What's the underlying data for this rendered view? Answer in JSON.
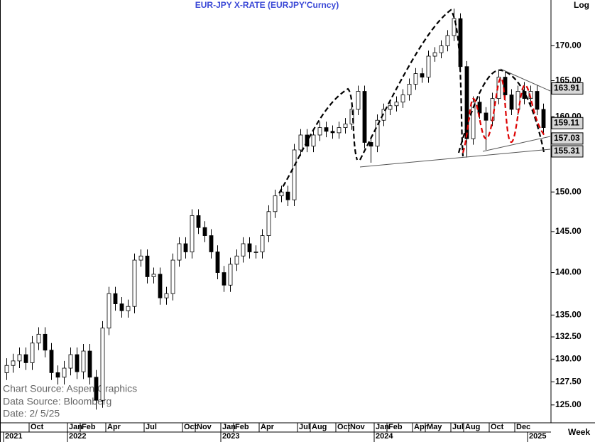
{
  "chart_data": {
    "type": "candlestick",
    "title": "EUR-JPY  X-RATE  (EURJPY'Curncy)",
    "scale_label": "Log",
    "period_label": "Week",
    "log_scale": true,
    "source_lines": [
      "Chart Source: Aspen Graphics",
      "Data Source: Bloomberg",
      "Date:   2/  5/25"
    ],
    "categories": [
      "2021-08",
      "2021-08",
      "2021-09",
      "2021-09",
      "2021-10",
      "2021-10",
      "2021-11",
      "2021-11",
      "2021-12",
      "2021-12",
      "2022-01",
      "2022-01",
      "2022-02",
      "2022-02",
      "2022-03",
      "2022-03",
      "2022-04",
      "2022-04",
      "2022-05",
      "2022-05",
      "2022-06",
      "2022-06",
      "2022-07",
      "2022-07",
      "2022-08",
      "2022-08",
      "2022-09",
      "2022-09",
      "2022-10",
      "2022-10",
      "2022-11",
      "2022-11",
      "2022-12",
      "2022-12",
      "2023-01",
      "2023-01",
      "2023-02",
      "2023-02",
      "2023-03",
      "2023-03",
      "2023-04",
      "2023-04",
      "2023-05",
      "2023-05",
      "2023-06",
      "2023-06",
      "2023-07",
      "2023-07",
      "2023-08",
      "2023-08",
      "2023-09",
      "2023-09",
      "2023-10",
      "2023-10",
      "2023-11",
      "2023-11",
      "2023-12",
      "2023-12",
      "2024-01",
      "2024-01",
      "2024-02",
      "2024-02",
      "2024-03",
      "2024-03",
      "2024-04",
      "2024-04",
      "2024-05",
      "2024-05",
      "2024-06",
      "2024-06",
      "2024-07",
      "2024-07",
      "2024-08",
      "2024-08",
      "2024-09",
      "2024-09",
      "2024-10",
      "2024-10",
      "2024-11",
      "2024-11",
      "2024-12",
      "2024-12",
      "2025-01",
      "2025-01",
      "2025-02"
    ],
    "open": [
      128.5,
      129.3,
      129.8,
      130.5,
      129.6,
      131.8,
      132.8,
      131.0,
      128.5,
      128.0,
      129.0,
      130.5,
      128.6,
      130.9,
      128.0,
      125.5,
      133.5,
      137.5,
      136.3,
      135.5,
      136.0,
      141.5,
      142.0,
      139.5,
      139.8,
      137.0,
      137.5,
      141.5,
      143.5,
      142.5,
      147.0,
      145.5,
      144.5,
      142.5,
      140.0,
      138.5,
      141.0,
      142.0,
      143.5,
      142.5,
      142.5,
      144.5,
      147.5,
      149.5,
      150.0,
      149.0,
      155.5,
      157.5,
      156.0,
      157.5,
      158.5,
      158.0,
      157.8,
      158.5,
      159.0,
      161.0,
      163.5,
      156.5,
      156.0,
      159.5,
      161.0,
      161.5,
      162.0,
      163.0,
      164.5,
      166.0,
      165.5,
      168.5,
      169.0,
      170.0,
      171.5,
      174.0,
      167.0,
      157.0,
      162.0,
      160.5,
      159.5,
      162.5,
      165.5,
      163.0,
      161.0,
      163.5,
      162.5,
      163.5,
      161.0
    ],
    "high": [
      130.1,
      130.6,
      131.3,
      131.3,
      132.6,
      133.6,
      133.6,
      131.8,
      129.3,
      129.8,
      131.3,
      131.3,
      131.7,
      131.7,
      128.8,
      134.3,
      138.3,
      138.3,
      137.1,
      136.8,
      142.3,
      142.8,
      142.8,
      140.6,
      140.6,
      138.3,
      142.3,
      144.3,
      144.3,
      147.8,
      147.8,
      146.3,
      145.3,
      143.3,
      140.8,
      141.8,
      142.8,
      144.3,
      144.3,
      143.3,
      145.3,
      148.3,
      150.3,
      150.8,
      150.8,
      156.3,
      158.3,
      158.3,
      158.3,
      159.3,
      159.3,
      158.8,
      159.3,
      159.8,
      161.8,
      164.3,
      164.3,
      157.3,
      160.3,
      161.8,
      162.3,
      162.8,
      163.8,
      165.3,
      166.8,
      166.8,
      169.3,
      169.8,
      170.8,
      172.3,
      175.5,
      174.8,
      167.8,
      162.8,
      162.8,
      161.3,
      163.3,
      166.5,
      166.3,
      163.8,
      164.3,
      164.8,
      164.3,
      164.3,
      161.8
    ],
    "low": [
      127.7,
      128.5,
      129.0,
      128.8,
      128.8,
      131.0,
      130.2,
      127.7,
      127.2,
      127.2,
      128.2,
      127.8,
      127.8,
      127.2,
      124.5,
      124.7,
      132.7,
      135.5,
      134.7,
      134.7,
      135.2,
      140.7,
      138.7,
      138.7,
      136.2,
      136.2,
      136.7,
      140.7,
      141.7,
      141.7,
      144.7,
      143.7,
      141.7,
      139.2,
      137.7,
      137.7,
      140.2,
      141.2,
      141.7,
      141.7,
      141.7,
      143.7,
      146.7,
      148.7,
      148.2,
      148.2,
      154.7,
      155.2,
      155.2,
      156.7,
      157.2,
      157.0,
      157.0,
      157.7,
      158.2,
      160.2,
      155.7,
      153.8,
      155.2,
      158.7,
      160.2,
      160.7,
      161.2,
      162.2,
      163.7,
      164.7,
      164.7,
      167.7,
      168.2,
      169.2,
      170.7,
      166.2,
      154.5,
      156.2,
      159.7,
      155.5,
      158.7,
      161.7,
      162.2,
      160.2,
      160.2,
      161.7,
      161.7,
      160.2,
      157.8
    ],
    "close": [
      129.3,
      129.8,
      130.5,
      129.6,
      131.8,
      132.8,
      131.0,
      128.5,
      128.0,
      129.0,
      130.5,
      128.6,
      130.9,
      128.0,
      125.5,
      133.5,
      137.5,
      136.3,
      135.5,
      136.0,
      141.5,
      142.0,
      139.5,
      139.8,
      137.0,
      137.5,
      141.5,
      143.5,
      142.5,
      147.0,
      145.5,
      144.5,
      142.5,
      140.0,
      138.5,
      141.0,
      142.0,
      143.5,
      142.5,
      142.5,
      144.5,
      147.5,
      149.5,
      150.0,
      149.0,
      155.5,
      157.5,
      156.0,
      157.5,
      158.5,
      158.0,
      157.8,
      158.5,
      159.0,
      161.0,
      163.5,
      156.5,
      156.0,
      159.5,
      161.0,
      161.5,
      162.0,
      163.0,
      164.5,
      166.0,
      165.5,
      168.5,
      169.0,
      170.0,
      171.5,
      174.0,
      167.0,
      157.0,
      162.0,
      160.5,
      159.5,
      162.5,
      165.5,
      163.0,
      161.0,
      163.5,
      162.5,
      163.5,
      161.0,
      158.5
    ],
    "ylim": [
      123.1,
      176.8
    ],
    "yticks": [
      {
        "value": 125,
        "label": "125.00"
      },
      {
        "value": 127.5,
        "label": "127.50"
      },
      {
        "value": 130,
        "label": "130.00"
      },
      {
        "value": 132.5,
        "label": "132.50"
      },
      {
        "value": 135,
        "label": "135.00"
      },
      {
        "value": 140,
        "label": "140.00"
      },
      {
        "value": 145,
        "label": "145.00"
      },
      {
        "value": 150,
        "label": "150.00"
      },
      {
        "value": 155,
        "label": "155.00"
      },
      {
        "value": 160,
        "label": "160.00"
      },
      {
        "value": 165,
        "label": "165.00"
      },
      {
        "value": 170,
        "label": "170.00"
      }
    ],
    "xticks": [
      {
        "value": "2021-10",
        "label": "Oct"
      },
      {
        "value": "2022-01",
        "label": "Jan"
      },
      {
        "value": "2022-02",
        "label": "Feb"
      },
      {
        "value": "2022-04",
        "label": "Apr"
      },
      {
        "value": "2022-07",
        "label": "Jul"
      },
      {
        "value": "2022-10",
        "label": "Oct"
      },
      {
        "value": "2022-11",
        "label": "Nov"
      },
      {
        "value": "2023-01",
        "label": "Jan"
      },
      {
        "value": "2023-02",
        "label": "Feb"
      },
      {
        "value": "2023-04",
        "label": "Apr"
      },
      {
        "value": "2023-07",
        "label": "Jul"
      },
      {
        "value": "2023-08",
        "label": "Aug"
      },
      {
        "value": "2023-10",
        "label": "Oct"
      },
      {
        "value": "2023-11",
        "label": "Nov"
      },
      {
        "value": "2024-01",
        "label": "Jan"
      },
      {
        "value": "2024-02",
        "label": "Feb"
      },
      {
        "value": "2024-04",
        "label": "Apr"
      },
      {
        "value": "2024-05",
        "label": "May"
      },
      {
        "value": "2024-07",
        "label": "Jul"
      },
      {
        "value": "2024-08",
        "label": "Aug"
      },
      {
        "value": "2024-10",
        "label": "Oct"
      },
      {
        "value": "2024-12",
        "label": "Dec"
      }
    ],
    "year_ticks": [
      {
        "value": "2021-08",
        "label": "2021"
      },
      {
        "value": "2022-01",
        "label": "2022"
      },
      {
        "value": "2023-01",
        "label": "2023"
      },
      {
        "value": "2024-01",
        "label": "2024"
      },
      {
        "value": "2025-01",
        "label": "2025"
      }
    ],
    "price_labels": [
      163.91,
      159.11,
      157.03,
      155.31
    ]
  }
}
